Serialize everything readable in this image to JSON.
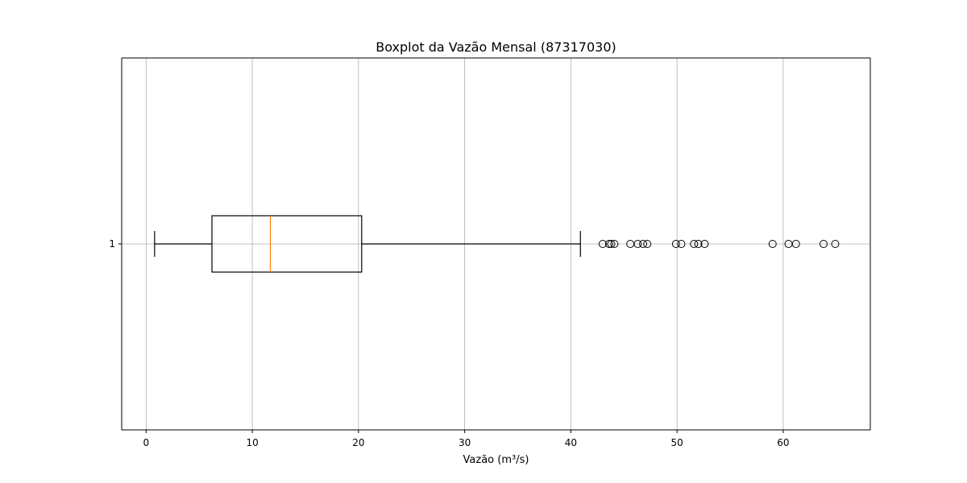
{
  "chart_data": {
    "type": "boxplot",
    "title": "Boxplot da Vazão Mensal (87317030)",
    "xlabel": "Vazão (m³/s)",
    "ylabel": "",
    "orientation": "horizontal",
    "xlim": [
      -2.3,
      68.2
    ],
    "x_ticks": [
      0,
      10,
      20,
      30,
      40,
      50,
      60
    ],
    "y_ticks": [
      "1"
    ],
    "grid": true,
    "box": {
      "category": "1",
      "whisker_low": 0.8,
      "q1": 6.2,
      "median": 11.7,
      "q3": 20.3,
      "whisker_high": 40.9,
      "outliers": [
        43.0,
        43.6,
        43.8,
        44.1,
        45.6,
        46.3,
        46.8,
        47.2,
        49.9,
        50.4,
        51.6,
        52.0,
        52.6,
        59.0,
        60.5,
        61.2,
        63.8,
        64.9
      ]
    },
    "colors": {
      "box": "#000000",
      "median": "#ff7f0e",
      "grid": "#b0b0b0"
    }
  }
}
